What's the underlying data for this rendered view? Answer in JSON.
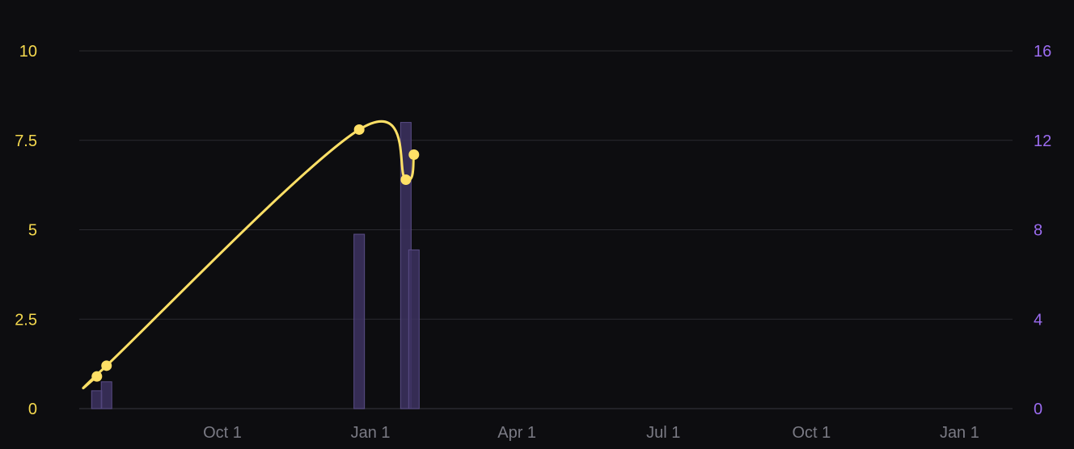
{
  "chart_data": {
    "type": "line",
    "x_ticks": [
      "Oct 1",
      "Jan 1",
      "Apr 1",
      "Jul 1",
      "Oct 1",
      "Jan 1"
    ],
    "y_left_ticks": [
      "0",
      "2.5",
      "5",
      "7.5",
      "10"
    ],
    "y_right_ticks": [
      "0",
      "4",
      "8",
      "12",
      "16"
    ],
    "y_left_range": [
      0,
      10
    ],
    "y_right_range": [
      0,
      16
    ],
    "grid": true,
    "line_series": {
      "color": "#ffe066",
      "x": [
        "Jul 15",
        "Jul 21",
        "Dec 25",
        "Jan 23",
        "Jan 28"
      ],
      "values": [
        0.9,
        1.2,
        7.8,
        6.4,
        7.1
      ]
    },
    "bar_series": {
      "color": "#3d3360",
      "x": [
        "Jul 15",
        "Jul 21",
        "Dec 25",
        "Jan 23",
        "Jan 28"
      ],
      "values": [
        0.8,
        1.2,
        7.8,
        12.8,
        7.1
      ]
    },
    "colors": {
      "left_axis": "#f5d94e",
      "right_axis": "#9b6cf0",
      "x_axis": "#7a7a84",
      "grid": "#2a2a30",
      "background": "#0d0d10"
    }
  }
}
